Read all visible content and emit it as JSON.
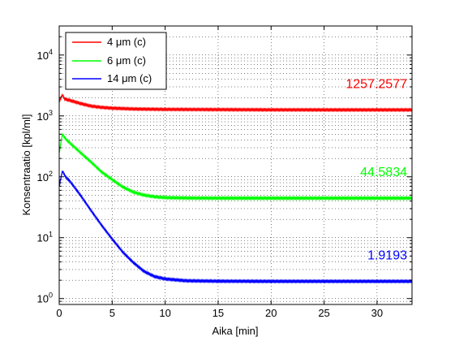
{
  "chart_data": {
    "type": "line",
    "title": "",
    "xlabel": "Aika [min]",
    "ylabel": "Konsentraatio [kpl/ml]",
    "xlim": [
      0,
      33.3
    ],
    "ylim": [
      0.8,
      30000
    ],
    "y_scale": "log",
    "grid": "dotted major and minor",
    "legend_position": "top-left",
    "x_ticks": [
      {
        "value": 0,
        "label": "0"
      },
      {
        "value": 5,
        "label": "5"
      },
      {
        "value": 10,
        "label": "10"
      },
      {
        "value": 15,
        "label": "15"
      },
      {
        "value": 20,
        "label": "20"
      },
      {
        "value": 25,
        "label": "25"
      },
      {
        "value": 30,
        "label": "30"
      }
    ],
    "y_ticks": [
      {
        "value": 1,
        "base": "10",
        "exp": "0"
      },
      {
        "value": 10,
        "base": "10",
        "exp": "1"
      },
      {
        "value": 100,
        "base": "10",
        "exp": "2"
      },
      {
        "value": 1000,
        "base": "10",
        "exp": "3"
      },
      {
        "value": 10000,
        "base": "10",
        "exp": "4"
      }
    ],
    "series": [
      {
        "name": "4 μm (c)",
        "color": "#ff0000",
        "end_label": "1257.2577",
        "points": [
          [
            0,
            1700
          ],
          [
            0.3,
            2250
          ],
          [
            0.5,
            1900
          ],
          [
            1,
            1800
          ],
          [
            2,
            1600
          ],
          [
            3,
            1450
          ],
          [
            4,
            1380
          ],
          [
            5,
            1340
          ],
          [
            7,
            1300
          ],
          [
            10,
            1280
          ],
          [
            15,
            1270
          ],
          [
            20,
            1260
          ],
          [
            25,
            1257
          ],
          [
            30,
            1257
          ],
          [
            33.3,
            1257
          ]
        ]
      },
      {
        "name": "6 μm (c)",
        "color": "#00ff00",
        "end_label": "44.5834",
        "points": [
          [
            0,
            250
          ],
          [
            0.3,
            500
          ],
          [
            0.6,
            420
          ],
          [
            1,
            360
          ],
          [
            2,
            250
          ],
          [
            3,
            175
          ],
          [
            4,
            120
          ],
          [
            5,
            90
          ],
          [
            6,
            68
          ],
          [
            7,
            56
          ],
          [
            8,
            50
          ],
          [
            9,
            47
          ],
          [
            10,
            45.5
          ],
          [
            12,
            44.8
          ],
          [
            15,
            44.6
          ],
          [
            20,
            44.6
          ],
          [
            25,
            44.6
          ],
          [
            30,
            44.6
          ],
          [
            33.3,
            44.6
          ]
        ]
      },
      {
        "name": "14 μm (c)",
        "color": "#0000ff",
        "end_label": "1.9193",
        "points": [
          [
            0,
            70
          ],
          [
            0.3,
            125
          ],
          [
            0.6,
            100
          ],
          [
            1,
            85
          ],
          [
            2,
            50
          ],
          [
            3,
            28
          ],
          [
            4,
            16
          ],
          [
            5,
            9.5
          ],
          [
            6,
            5.8
          ],
          [
            7,
            3.9
          ],
          [
            8,
            2.8
          ],
          [
            9,
            2.3
          ],
          [
            10,
            2.1
          ],
          [
            12,
            1.96
          ],
          [
            15,
            1.93
          ],
          [
            20,
            1.92
          ],
          [
            25,
            1.92
          ],
          [
            30,
            1.92
          ],
          [
            33.3,
            1.92
          ]
        ]
      }
    ]
  }
}
